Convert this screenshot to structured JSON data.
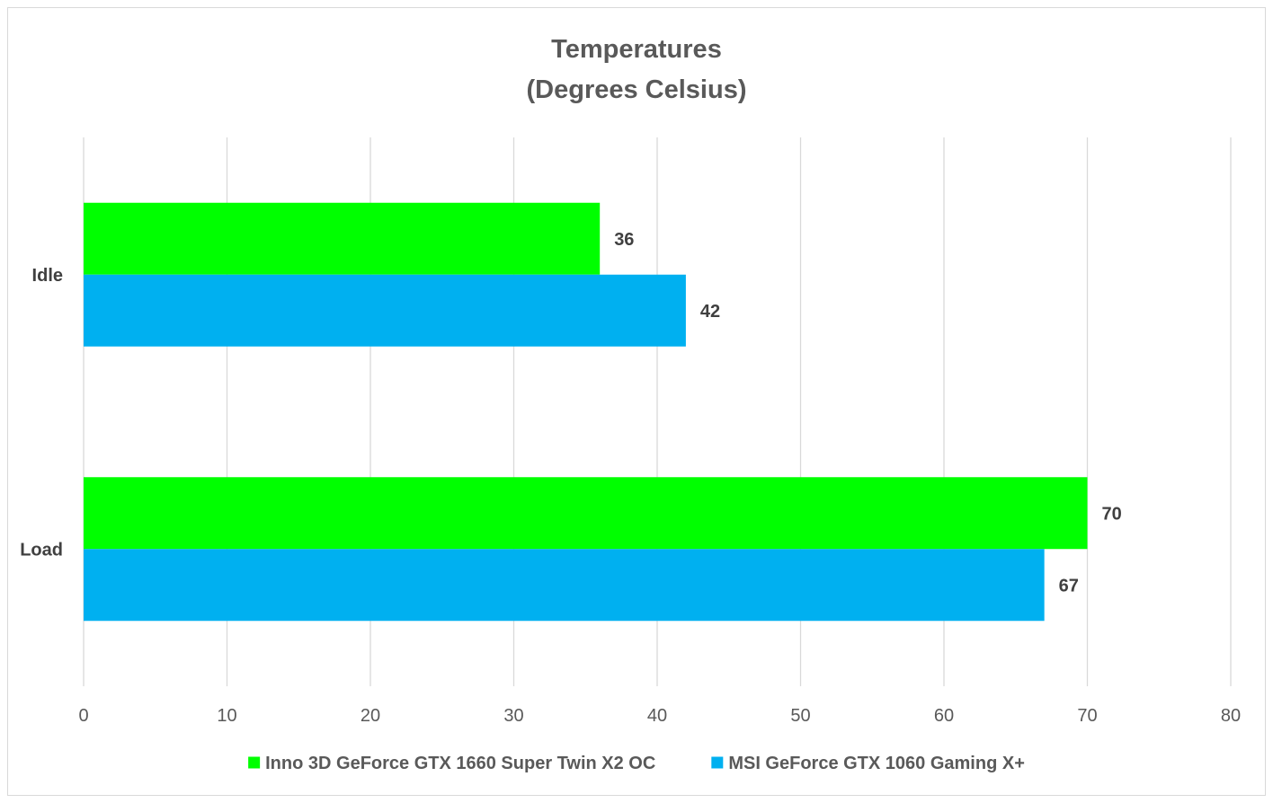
{
  "chart_data": {
    "type": "bar",
    "orientation": "horizontal",
    "title": [
      "Temperatures",
      "(Degrees Celsius)"
    ],
    "categories": [
      "Idle",
      "Load"
    ],
    "series": [
      {
        "name": "Inno 3D GeForce GTX 1660 Super Twin X2 OC",
        "color": "#00ff00",
        "values": [
          36,
          70
        ]
      },
      {
        "name": "MSI GeForce GTX 1060 Gaming X+",
        "color": "#00b0f0",
        "values": [
          42,
          67
        ]
      }
    ],
    "xlim": [
      0,
      80
    ],
    "xticks": [
      0,
      10,
      20,
      30,
      40,
      50,
      60,
      70,
      80
    ],
    "grid": true,
    "legend": "bottom"
  }
}
